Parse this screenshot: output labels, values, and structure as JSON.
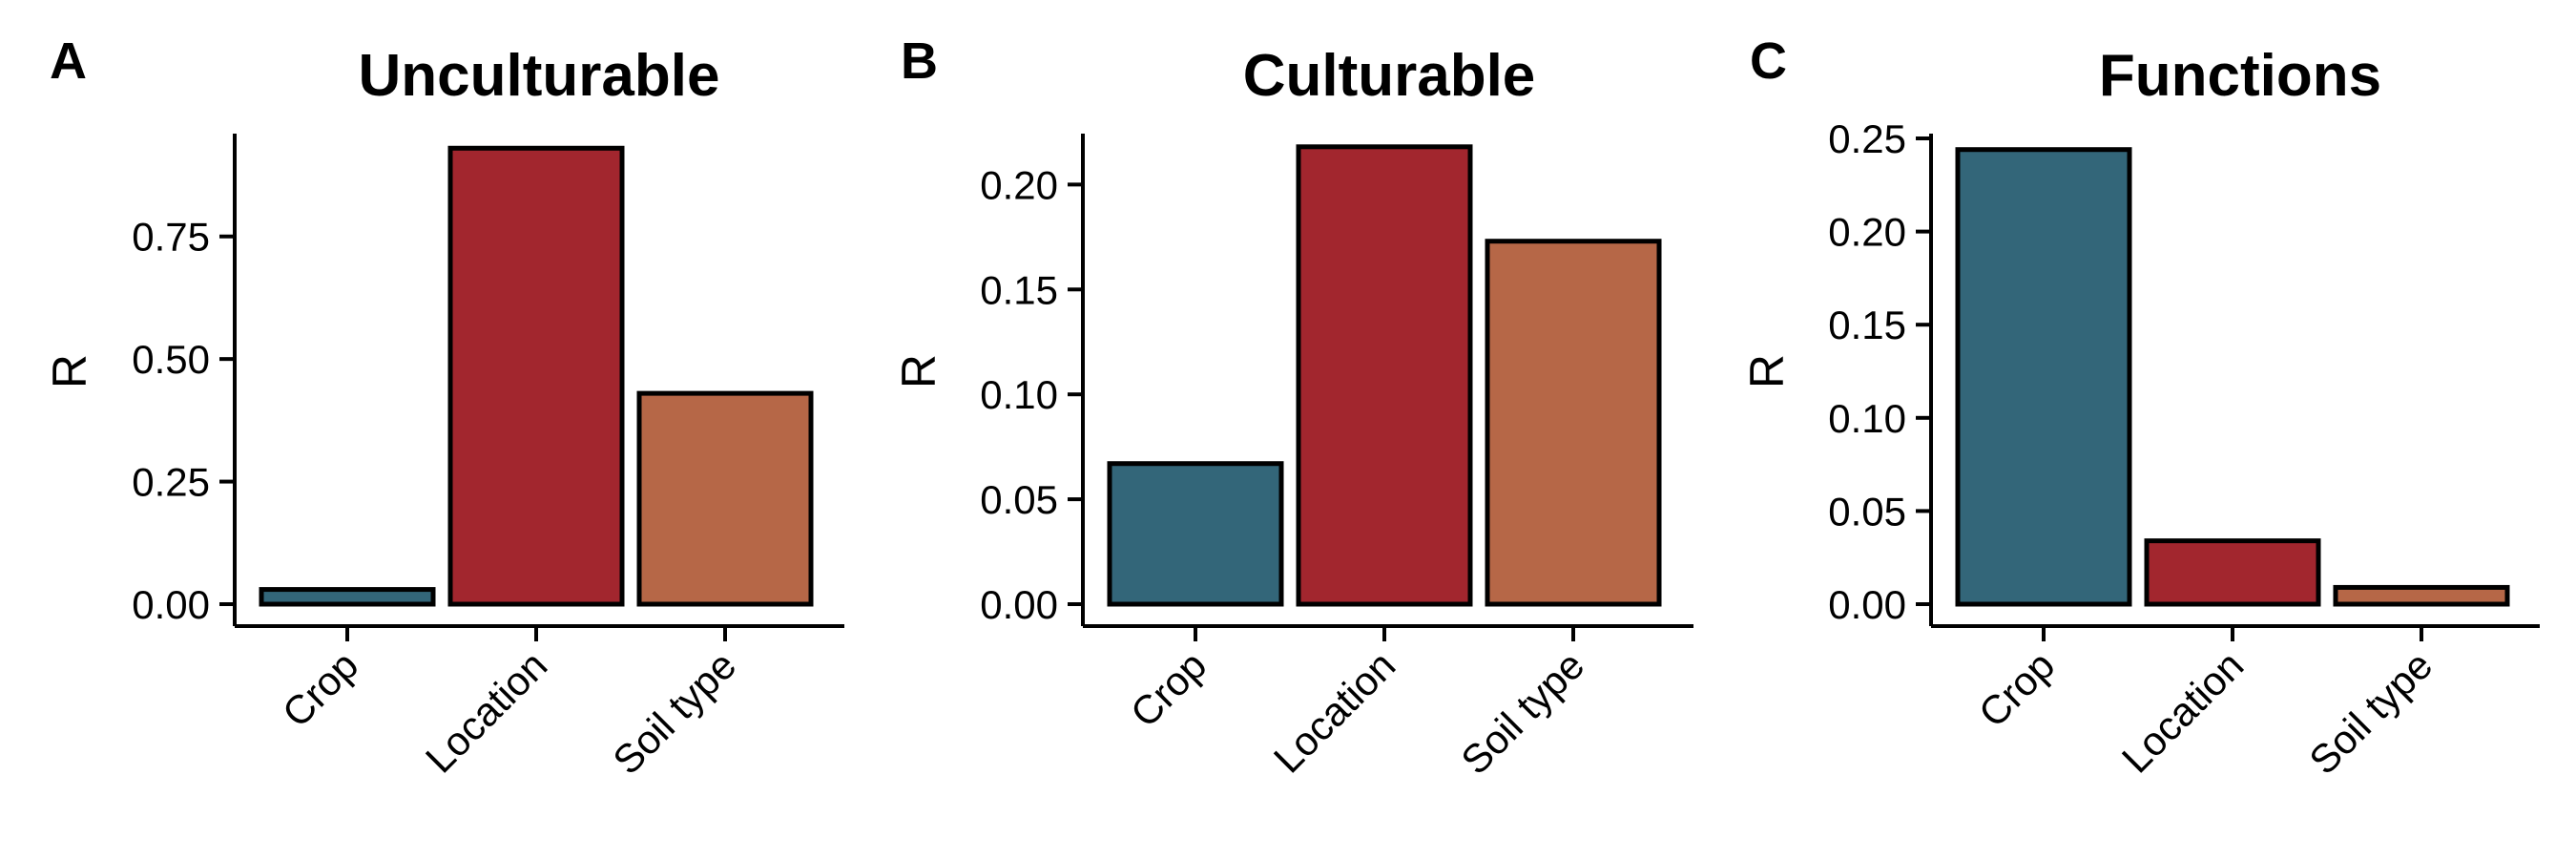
{
  "chart_data": [
    {
      "type": "bar",
      "panel_label": "A",
      "title": "Unculturable",
      "xlabel": "",
      "ylabel": "R",
      "categories": [
        "Crop",
        "Location",
        "Soil type"
      ],
      "values": [
        0.03,
        0.93,
        0.43
      ],
      "colors": [
        "#336679",
        "#A2262E",
        "#B66747"
      ],
      "ylim": [
        0,
        0.95
      ],
      "yticks": [
        0,
        0.25,
        0.5,
        0.75
      ],
      "ytick_labels": [
        "0.00",
        "0.25",
        "0.50",
        "0.75"
      ],
      "grid": false
    },
    {
      "type": "bar",
      "panel_label": "B",
      "title": "Culturable",
      "xlabel": "",
      "ylabel": "R",
      "categories": [
        "Crop",
        "Location",
        "Soil type"
      ],
      "values": [
        0.067,
        0.218,
        0.173
      ],
      "colors": [
        "#336679",
        "#A2262E",
        "#B66747"
      ],
      "ylim": [
        0,
        0.222
      ],
      "yticks": [
        0,
        0.05,
        0.1,
        0.15,
        0.2
      ],
      "ytick_labels": [
        "0.00",
        "0.05",
        "0.10",
        "0.15",
        "0.20"
      ],
      "grid": false
    },
    {
      "type": "bar",
      "panel_label": "C",
      "title": "Functions",
      "xlabel": "",
      "ylabel": "R",
      "categories": [
        "Crop",
        "Location",
        "Soil type"
      ],
      "values": [
        0.244,
        0.034,
        0.009
      ],
      "colors": [
        "#336679",
        "#A2262E",
        "#B66747"
      ],
      "ylim": [
        0,
        0.25
      ],
      "yticks": [
        0,
        0.05,
        0.1,
        0.15,
        0.2,
        0.25
      ],
      "ytick_labels": [
        "0.00",
        "0.05",
        "0.10",
        "0.15",
        "0.20",
        "0.25"
      ],
      "grid": false
    }
  ]
}
